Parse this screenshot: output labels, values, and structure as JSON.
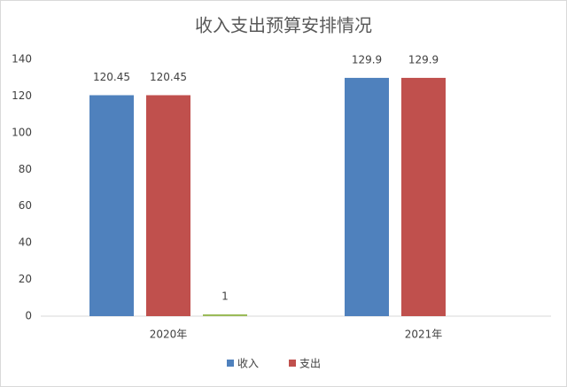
{
  "chart_data": {
    "type": "bar",
    "title": "收入支出预算安排情况",
    "categories": [
      "2020年",
      "2021年"
    ],
    "series": [
      {
        "name": "收入",
        "color": "#4f81bd",
        "values": [
          120.45,
          129.9
        ]
      },
      {
        "name": "支出",
        "color": "#c0504d",
        "values": [
          120.45,
          129.9
        ]
      },
      {
        "color": "#9bbb59",
        "values": [
          1,
          null
        ]
      }
    ],
    "ylim": [
      0,
      140
    ],
    "yticks": [
      0,
      20,
      40,
      60,
      80,
      100,
      120,
      140
    ],
    "grid": false,
    "legend": "bottom"
  }
}
